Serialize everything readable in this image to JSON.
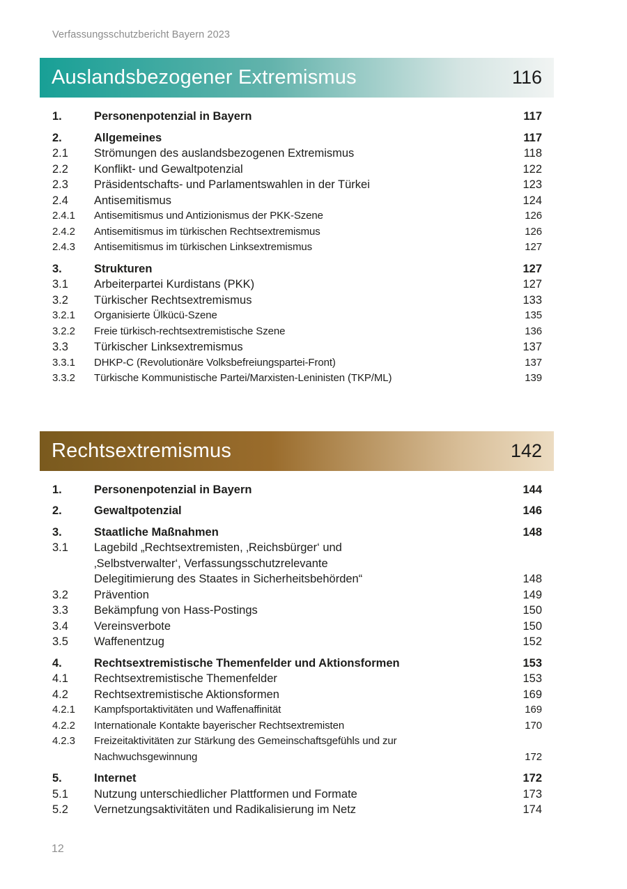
{
  "page": {
    "header": "Verfassungsschutzbericht Bayern 2023",
    "footer_page_number": "12"
  },
  "sections": [
    {
      "title": "Auslandsbezogener Extremismus",
      "page": "116",
      "colors": {
        "from": "#18a096",
        "mid": "#63b3ac",
        "light": "#d5e5e3",
        "to": "#f1f4f3",
        "title_color": "#ffffff",
        "page_color": "#1a1a1a"
      },
      "entries": [
        {
          "num": "1.",
          "label": "Personenpotenzial in Bayern",
          "page": "117",
          "level": 1
        },
        {
          "num": "2.",
          "label": "Allgemeines",
          "page": "117",
          "level": 1
        },
        {
          "num": "2.1",
          "label": "Strömungen des auslandsbezogenen Extremismus",
          "page": "118",
          "level": 2
        },
        {
          "num": "2.2",
          "label": "Konflikt- und Gewaltpotenzial",
          "page": "122",
          "level": 2
        },
        {
          "num": "2.3",
          "label": "Präsidentschafts- und Parlamentswahlen in der Türkei",
          "page": "123",
          "level": 2
        },
        {
          "num": "2.4",
          "label": "Antisemitismus",
          "page": "124",
          "level": 2
        },
        {
          "num": "2.4.1",
          "label": "Antisemitismus und Antizionismus der PKK-Szene",
          "page": "126",
          "level": 3
        },
        {
          "num": "2.4.2",
          "label": "Antisemitismus im türkischen Rechtsextremismus",
          "page": "126",
          "level": 3
        },
        {
          "num": "2.4.3",
          "label": "Antisemitismus im türkischen Linksextremismus",
          "page": "127",
          "level": 3
        },
        {
          "num": "3.",
          "label": "Strukturen",
          "page": "127",
          "level": 1
        },
        {
          "num": "3.1",
          "label": "Arbeiterpartei Kurdistans (PKK)",
          "page": "127",
          "level": 2
        },
        {
          "num": "3.2",
          "label": "Türkischer Rechtsextremismus",
          "page": "133",
          "level": 2
        },
        {
          "num": "3.2.1",
          "label": "Organisierte Ülkücü-Szene",
          "page": "135",
          "level": 3
        },
        {
          "num": "3.2.2",
          "label": "Freie türkisch-rechtsextremistische Szene",
          "page": "136",
          "level": 3
        },
        {
          "num": "3.3",
          "label": "Türkischer Linksextremismus",
          "page": "137",
          "level": 2
        },
        {
          "num": "3.3.1",
          "label": "DHKP-C (Revolutionäre Volksbefreiungspartei-Front)",
          "page": "137",
          "level": 3
        },
        {
          "num": "3.3.2",
          "label": "Türkische Kommunistische Partei/Marxisten-Leninisten (TKP/ML)",
          "page": "139",
          "level": 3
        }
      ]
    },
    {
      "title": "Rechtsextremismus",
      "page": "142",
      "colors": {
        "from": "#7a5a1e",
        "mid": "#9a6c2c",
        "light": "#d8be98",
        "to": "#ecdcc2",
        "title_color": "#ffffff",
        "page_color": "#1a1a1a"
      },
      "entries": [
        {
          "num": "1.",
          "label": "Personenpotenzial in Bayern",
          "page": "144",
          "level": 1
        },
        {
          "num": "2.",
          "label": "Gewaltpotenzial",
          "page": "146",
          "level": 1
        },
        {
          "num": "3.",
          "label": "Staatliche Maßnahmen",
          "page": "148",
          "level": 1
        },
        {
          "num": "3.1",
          "label": "Lagebild „Rechtsextremisten, ‚Reichsbürger‘ und\n‚Selbstverwalter‘, Verfassungsschutzrelevante\nDelegitimierung des Staates in Sicherheitsbehörden“",
          "page": "148",
          "level": 2
        },
        {
          "num": "3.2",
          "label": "Prävention",
          "page": "149",
          "level": 2
        },
        {
          "num": "3.3",
          "label": "Bekämpfung von Hass-Postings",
          "page": "150",
          "level": 2
        },
        {
          "num": "3.4",
          "label": "Vereinsverbote",
          "page": "150",
          "level": 2
        },
        {
          "num": "3.5",
          "label": "Waffenentzug",
          "page": "152",
          "level": 2
        },
        {
          "num": "4.",
          "label": "Rechtsextremistische Themenfelder und Aktionsformen",
          "page": "153",
          "level": 1
        },
        {
          "num": "4.1",
          "label": "Rechtsextremistische Themenfelder",
          "page": "153",
          "level": 2
        },
        {
          "num": "4.2",
          "label": "Rechtsextremistische Aktionsformen",
          "page": "169",
          "level": 2
        },
        {
          "num": "4.2.1",
          "label": "Kampfsportaktivitäten und Waffenaffinität",
          "page": "169",
          "level": 3
        },
        {
          "num": "4.2.2",
          "label": "Internationale Kontakte bayerischer Rechtsextremisten",
          "page": "170",
          "level": 3
        },
        {
          "num": "4.2.3",
          "label": "Freizeitaktivitäten zur Stärkung des Gemeinschaftsgefühls und zur\nNachwuchsgewinnung",
          "page": "172",
          "level": 3
        },
        {
          "num": "5.",
          "label": "Internet",
          "page": "172",
          "level": 1
        },
        {
          "num": "5.1",
          "label": "Nutzung unterschiedlicher Plattformen und Formate",
          "page": "173",
          "level": 2
        },
        {
          "num": "5.2",
          "label": "Vernetzungsaktivitäten und Radikalisierung im Netz",
          "page": "174",
          "level": 2
        }
      ]
    }
  ]
}
